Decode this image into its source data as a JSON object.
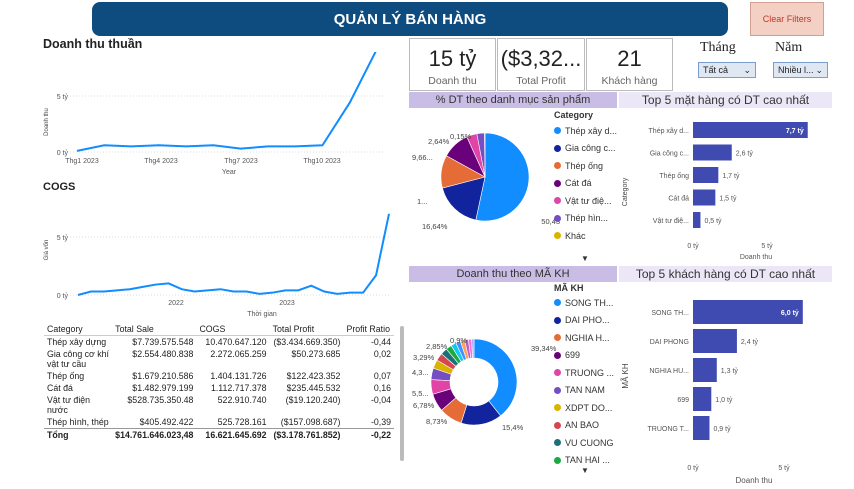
{
  "header": {
    "title": "QUẢN LÝ BÁN HÀNG",
    "clear": "Clear Filters"
  },
  "kpis": [
    {
      "value": "15 tỷ",
      "label": "Doanh thu"
    },
    {
      "value": "($3,32...",
      "label": "Total Profit"
    },
    {
      "value": "21",
      "label": "Khách hàng"
    }
  ],
  "filters": {
    "month_label": "Tháng",
    "month_value": "Tất cả",
    "year_label": "Năm",
    "year_value": "Nhiều l..."
  },
  "colors": {
    "header": "#0e4c80",
    "line": "#118dff",
    "bar": "#3f4bb0",
    "banner": "#c9bde6"
  },
  "revenue_chart": {
    "title": "Doanh thu thuần",
    "ylabel": "Doanh thu",
    "xlabel": "Year",
    "yticks": [
      "5 tỷ",
      "0 tỷ"
    ],
    "xticks": [
      "Thg1 2023",
      "Thg4 2023",
      "Thg7 2023",
      "Thg10 2023"
    ]
  },
  "cogs_chart": {
    "title": "COGS",
    "ylabel": "Giá vốn",
    "xlabel": "Thời gian",
    "yticks": [
      "5 tỷ",
      "0 tỷ"
    ],
    "xticks": [
      "2022",
      "2023"
    ]
  },
  "table": {
    "headers": [
      "Category",
      "Total Sale",
      "COGS",
      "Total Profit",
      "Profit Ratio"
    ],
    "rows": [
      [
        "Thép xây dựng",
        "$7.739.575.548",
        "10.470.647.120",
        "($3.434.669.350)",
        "-0,44"
      ],
      [
        "Gia công cơ khí vật tư cầu",
        "$2.554.480.838",
        "2.272.065.259",
        "$50.273.685",
        "0,02"
      ],
      [
        "Thép ống",
        "$1.679.210.586",
        "1.404.131.726",
        "$122.423.352",
        "0,07"
      ],
      [
        "Cát đá",
        "$1.482.979.199",
        "1.112.717.378",
        "$235.445.532",
        "0,16"
      ],
      [
        "Vật tư điện nước",
        "$528.735.350.48",
        "522.910.740",
        "($19.120.240)",
        "-0,04"
      ],
      [
        "Thép hình, thép",
        "$405.492.422",
        "525.728.161",
        "($157.098.687)",
        "-0,39"
      ]
    ],
    "total": [
      "Tổng",
      "$14.761.646.023,48",
      "16.621.645.692",
      "($3.178.761.852)",
      "-0,22"
    ]
  },
  "pie_category": {
    "banner": "% DT theo danh mục sản phẩm",
    "legend_title": "Category",
    "items": [
      {
        "name": "Thép xây d...",
        "value": 50.43,
        "color": "#118dff"
      },
      {
        "name": "Gia công c...",
        "value": 16.64,
        "color": "#12239e"
      },
      {
        "name": "Thép ống",
        "value": 11.4,
        "color": "#e66c37"
      },
      {
        "name": "Cát đá",
        "value": 9.66,
        "color": "#6b007b"
      },
      {
        "name": "Vật tư điệ...",
        "value": 3.6,
        "color": "#e044a7"
      },
      {
        "name": "Thép hìn...",
        "value": 2.64,
        "color": "#744ec2"
      },
      {
        "name": "Khác",
        "value": 0.15,
        "color": "#d9b300"
      }
    ],
    "labels": [
      "50,43%",
      "16,64%",
      "1...",
      "9,66...",
      "2,64%",
      "0,15%"
    ]
  },
  "bar_top_products": {
    "banner": "Top 5 mặt hàng có DT cao nhất",
    "ylabel": "Category",
    "xlabel": "Doanh thu",
    "items": [
      {
        "name": "Thép xây d...",
        "value": 7.7,
        "label": "7,7 tỷ"
      },
      {
        "name": "Gia công c...",
        "value": 2.6,
        "label": "2,6 tỷ"
      },
      {
        "name": "Thép ống",
        "value": 1.7,
        "label": "1,7 tỷ"
      },
      {
        "name": "Cát đá",
        "value": 1.5,
        "label": "1,5 tỷ"
      },
      {
        "name": "Vật tư điệ...",
        "value": 0.5,
        "label": "0,5 tỷ"
      }
    ],
    "xticks": [
      "0 tỷ",
      "5 tỷ"
    ]
  },
  "donut_customer": {
    "banner": "Doanh thu theo MÃ KH",
    "legend_title": "MÃ KH",
    "items": [
      {
        "name": "SONG TH...",
        "value": 39.34,
        "color": "#118dff"
      },
      {
        "name": "DAI PHO...",
        "value": 15.4,
        "color": "#12239e"
      },
      {
        "name": "NGHIA H...",
        "value": 8.73,
        "color": "#e66c37"
      },
      {
        "name": "699",
        "value": 6.78,
        "color": "#6b007b"
      },
      {
        "name": "TRUONG ...",
        "value": 5.5,
        "color": "#e044a7"
      },
      {
        "name": "TAN NAM",
        "value": 4.3,
        "color": "#744ec2"
      },
      {
        "name": "XDPT DO...",
        "value": 3.29,
        "color": "#d9b300"
      },
      {
        "name": "AN BAO",
        "value": 2.85,
        "color": "#d64550"
      },
      {
        "name": "VU CUONG",
        "value": 2.5,
        "color": "#197278"
      },
      {
        "name": "TAN HAI ...",
        "value": 2.2,
        "color": "#1aab40"
      }
    ],
    "extra": [
      {
        "value": 2.0,
        "color": "#15c6f4"
      },
      {
        "value": 1.8,
        "color": "#4092ff"
      },
      {
        "value": 1.6,
        "color": "#ffa058"
      },
      {
        "value": 1.4,
        "color": "#be5dc9"
      },
      {
        "value": 1.2,
        "color": "#f472d0"
      },
      {
        "value": 0.9,
        "color": "#b5a1ff"
      }
    ],
    "labels": [
      "39,34%",
      "15,4%",
      "8,73%",
      "6,78%",
      "5,5...",
      "4,3...",
      "3,29%",
      "2,85%",
      "0,9%"
    ]
  },
  "bar_top_customers": {
    "banner": "Top 5 khách hàng có DT cao nhất",
    "ylabel": "MÃ KH",
    "xlabel": "Doanh thu",
    "items": [
      {
        "name": "SONG TH...",
        "value": 6.0,
        "label": "6,0 tỷ"
      },
      {
        "name": "DAI PHONG",
        "value": 2.4,
        "label": "2,4 tỷ"
      },
      {
        "name": "NGHIA HU...",
        "value": 1.3,
        "label": "1,3 tỷ"
      },
      {
        "name": "699",
        "value": 1.0,
        "label": "1,0 tỷ"
      },
      {
        "name": "TRUONG T...",
        "value": 0.9,
        "label": "0,9 tỷ"
      }
    ],
    "xticks": [
      "0 tỷ",
      "5 tỷ"
    ]
  },
  "chart_data": [
    {
      "type": "line",
      "title": "Doanh thu thuần",
      "xlabel": "Year",
      "ylabel": "Doanh thu",
      "x": [
        "Thg1 2023",
        "Thg2 2023",
        "Thg3 2023",
        "Thg4 2023",
        "Thg5 2023",
        "Thg6 2023",
        "Thg7 2023",
        "Thg8 2023",
        "Thg9 2023",
        "Thg10 2023",
        "Thg11 2023",
        "Thg12 2023"
      ],
      "values": [
        0.1,
        0.6,
        0.5,
        0.6,
        0.5,
        0.6,
        0.3,
        0.5,
        0.5,
        0.6,
        4.4,
        9.2
      ],
      "ylim": [
        0,
        10
      ],
      "unit": "tỷ"
    },
    {
      "type": "line",
      "title": "COGS",
      "xlabel": "Thời gian",
      "ylabel": "Giá vốn",
      "x": [
        "Thg12 2021",
        "Thg1 2022",
        "Thg2 2022",
        "Thg3 2022",
        "Thg4 2022",
        "Thg5 2022",
        "Thg6 2022",
        "Thg7 2022",
        "Thg8 2022",
        "Thg9 2022",
        "Thg10 2022",
        "Thg11 2022",
        "Thg12 2022",
        "Thg1 2023",
        "Thg2 2023",
        "Thg3 2023",
        "Thg4 2023",
        "Thg5 2023",
        "Thg6 2023",
        "Thg7 2023",
        "Thg8 2023",
        "Thg9 2023",
        "Thg10 2023",
        "Thg11 2023",
        "Thg12 2023"
      ],
      "values": [
        0.0,
        0.3,
        0.3,
        0.4,
        0.5,
        0.7,
        0.9,
        1.0,
        0.5,
        0.3,
        0.4,
        0.5,
        0.3,
        0.3,
        0.1,
        0.2,
        0.4,
        0.4,
        0.8,
        0.3,
        0.1,
        0.2,
        0.2,
        1.7,
        7.0
      ],
      "ylim": [
        0,
        8
      ],
      "unit": "tỷ"
    }
  ]
}
